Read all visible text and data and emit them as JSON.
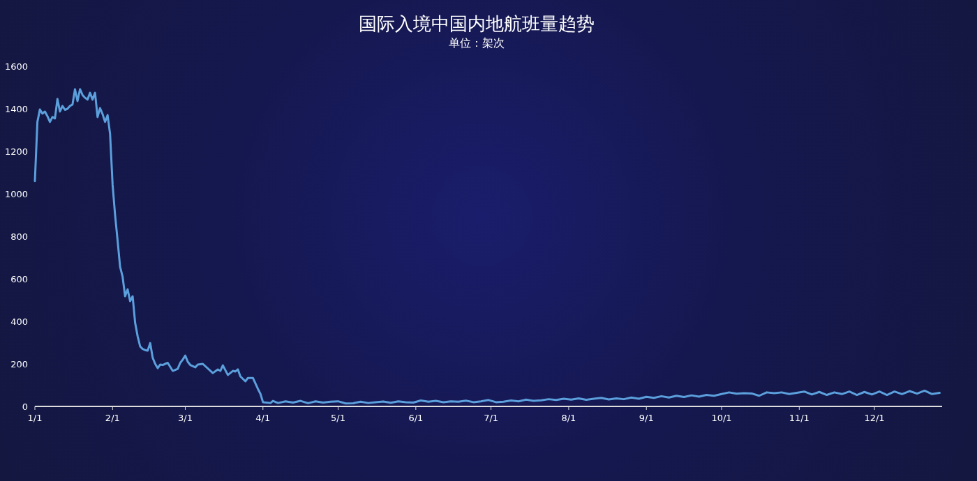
{
  "chart_data": {
    "type": "line",
    "title": "国际入境中国内地航班量趋势",
    "subtitle": "单位：架次",
    "color": "#5b9fdc",
    "x": [
      "--01-01",
      "--01-02",
      "--01-03",
      "--01-04",
      "--01-05",
      "--01-06",
      "--01-07",
      "--01-08",
      "--01-09",
      "--01-10",
      "--01-11",
      "--01-12",
      "--01-13",
      "--01-14",
      "--01-15",
      "--01-16",
      "--01-17",
      "--01-18",
      "--01-19",
      "--01-20",
      "--01-21",
      "--01-22",
      "--01-23",
      "--01-24",
      "--01-25",
      "--01-26",
      "--01-27",
      "--01-28",
      "--01-29",
      "--01-30",
      "--01-31",
      "--02-01",
      "--02-02",
      "--02-03",
      "--02-04",
      "--02-05",
      "--02-06",
      "--02-07",
      "--02-08",
      "--02-09",
      "--02-10",
      "--02-11",
      "--02-12",
      "--02-13",
      "--02-14",
      "--02-15",
      "--02-16",
      "--02-17",
      "--02-18",
      "--02-19",
      "--02-20",
      "--02-21",
      "--02-22",
      "--02-23",
      "--02-25",
      "--02-27",
      "--02-28",
      "--02-29",
      "--03-01",
      "--03-02",
      "--03-03",
      "--03-05",
      "--03-06",
      "--03-08",
      "--03-12",
      "--03-14",
      "--03-15",
      "--03-16",
      "--03-18",
      "--03-20",
      "--03-21",
      "--03-22",
      "--03-23",
      "--03-25",
      "--03-26",
      "--03-28",
      "--03-30",
      "--03-31",
      "--04-01",
      "--04-04",
      "--04-05",
      "--04-07",
      "--04-10",
      "--04-13",
      "--04-16",
      "--04-19",
      "--04-22",
      "--04-25",
      "--04-28",
      "--05-01",
      "--05-04",
      "--05-07",
      "--05-10",
      "--05-13",
      "--05-16",
      "--05-19",
      "--05-22",
      "--05-25",
      "--05-28",
      "--05-31",
      "--06-03",
      "--06-06",
      "--06-09",
      "--06-12",
      "--06-15",
      "--06-18",
      "--06-21",
      "--06-24",
      "--06-27",
      "--06-30",
      "--07-03",
      "--07-06",
      "--07-09",
      "--07-12",
      "--07-15",
      "--07-18",
      "--07-21",
      "--07-24",
      "--07-27",
      "--07-30",
      "--08-02",
      "--08-05",
      "--08-08",
      "--08-11",
      "--08-14",
      "--08-17",
      "--08-20",
      "--08-23",
      "--08-26",
      "--08-29",
      "--09-01",
      "--09-04",
      "--09-07",
      "--09-10",
      "--09-13",
      "--09-16",
      "--09-19",
      "--09-22",
      "--09-25",
      "--09-28",
      "--10-01",
      "--10-04",
      "--10-07",
      "--10-10",
      "--10-13",
      "--10-16",
      "--10-19",
      "--10-22",
      "--10-25",
      "--10-28",
      "--10-31",
      "--11-03",
      "--11-06",
      "--11-09",
      "--11-12",
      "--11-15",
      "--11-18",
      "--11-21",
      "--11-24",
      "--11-27",
      "--11-30",
      "--12-03",
      "--12-06",
      "--12-09",
      "--12-12",
      "--12-15",
      "--12-18",
      "--12-21",
      "--12-24",
      "--12-27"
    ],
    "values": [
      1060,
      1338,
      1397,
      1377,
      1387,
      1365,
      1338,
      1361,
      1354,
      1446,
      1387,
      1413,
      1395,
      1400,
      1413,
      1420,
      1492,
      1436,
      1492,
      1465,
      1452,
      1443,
      1475,
      1443,
      1475,
      1361,
      1403,
      1375,
      1338,
      1370,
      1282,
      1043,
      900,
      780,
      656,
      610,
      518,
      551,
      495,
      518,
      393,
      330,
      282,
      270,
      265,
      262,
      298,
      229,
      200,
      180,
      197,
      195,
      200,
      205,
      167,
      177,
      205,
      220,
      239,
      210,
      195,
      184,
      197,
      200,
      157,
      174,
      167,
      193,
      148,
      167,
      164,
      174,
      141,
      118,
      134,
      134,
      82,
      59,
      20,
      16,
      26,
      16,
      24,
      18,
      26,
      15,
      24,
      18,
      22,
      24,
      14,
      15,
      22,
      16,
      20,
      23,
      17,
      24,
      20,
      18,
      28,
      22,
      26,
      20,
      24,
      22,
      27,
      20,
      24,
      30,
      20,
      22,
      28,
      24,
      32,
      26,
      29,
      34,
      30,
      36,
      32,
      38,
      31,
      36,
      40,
      33,
      38,
      34,
      42,
      36,
      45,
      40,
      48,
      42,
      50,
      44,
      52,
      46,
      54,
      50,
      58,
      66,
      60,
      62,
      61,
      50,
      66,
      62,
      66,
      58,
      64,
      70,
      56,
      68,
      54,
      66,
      58,
      70,
      54,
      68,
      56,
      70,
      54,
      70,
      58,
      72,
      60,
      74,
      58,
      64
    ],
    "xlim": [
      "--01-01",
      "--12-28"
    ],
    "ylim": [
      0,
      1600
    ],
    "yticks": [
      0,
      200,
      400,
      600,
      800,
      1000,
      1200,
      1400,
      1600
    ],
    "xticks": [
      {
        "value": "--01-01",
        "label": "1/1"
      },
      {
        "value": "--02-01",
        "label": "2/1"
      },
      {
        "value": "--03-01",
        "label": "3/1"
      },
      {
        "value": "--04-01",
        "label": "4/1"
      },
      {
        "value": "--05-01",
        "label": "5/1"
      },
      {
        "value": "--06-01",
        "label": "6/1"
      },
      {
        "value": "--07-01",
        "label": "7/1"
      },
      {
        "value": "--08-01",
        "label": "8/1"
      },
      {
        "value": "--09-01",
        "label": "9/1"
      },
      {
        "value": "--10-01",
        "label": "10/1"
      },
      {
        "value": "--11-01",
        "label": "11/1"
      },
      {
        "value": "--12-01",
        "label": "12/1"
      }
    ]
  }
}
